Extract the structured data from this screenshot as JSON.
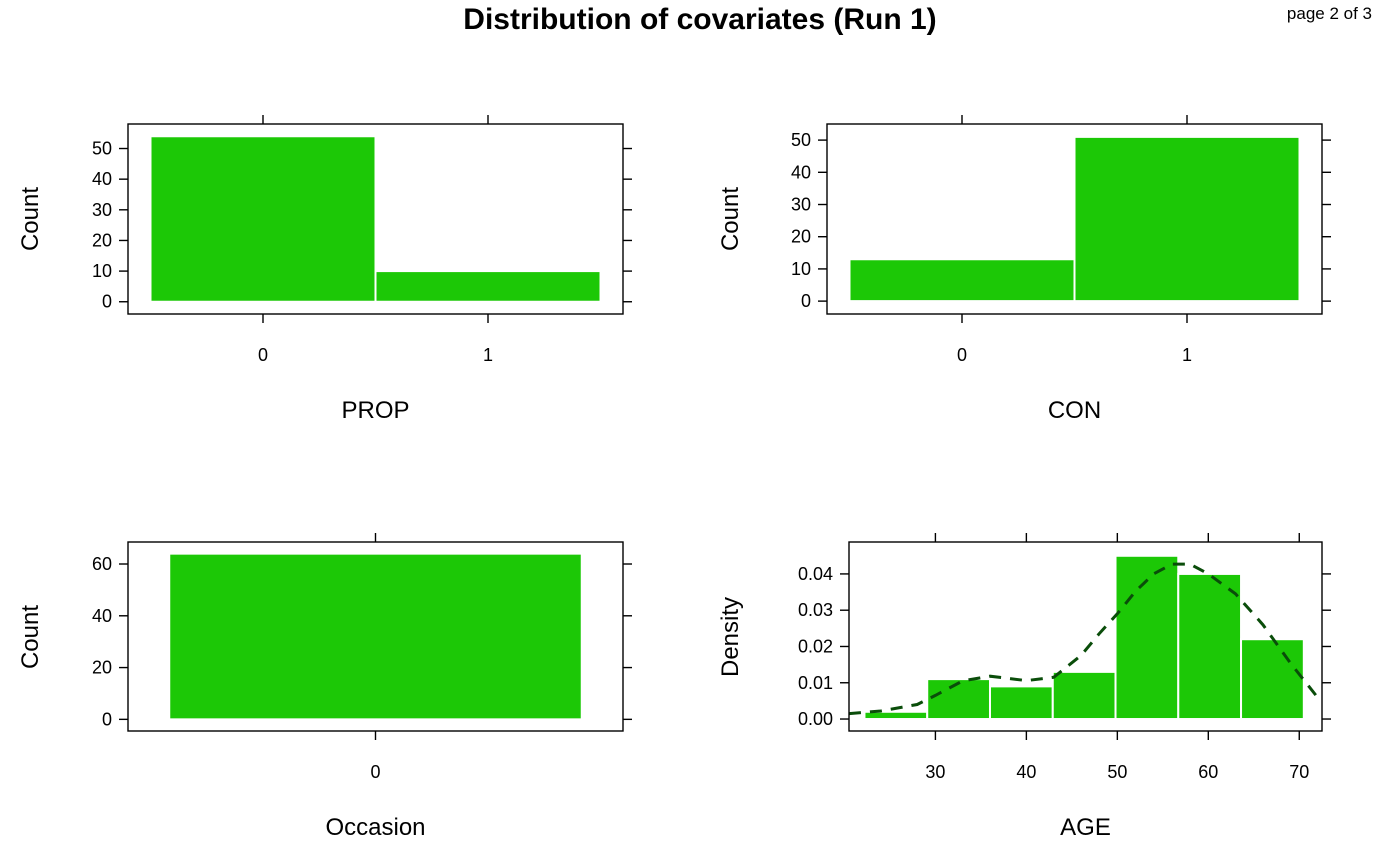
{
  "page": {
    "title": "Distribution of covariates (Run 1)",
    "counter": "page 2 of 3"
  },
  "colors": {
    "bar_fill": "#1cc806",
    "bar_edge": "#ffffff",
    "density_line": "#0a4d0a",
    "axis": "#000000"
  },
  "chart_data": [
    {
      "name": "PROP",
      "type": "bar",
      "categories": [
        "0",
        "1"
      ],
      "values": [
        54,
        10
      ],
      "xlabel": "PROP",
      "ylabel": "Count",
      "yticks": [
        0,
        10,
        20,
        30,
        40,
        50
      ],
      "ylim": [
        -4,
        58
      ],
      "grid": false
    },
    {
      "name": "CON",
      "type": "bar",
      "categories": [
        "0",
        "1"
      ],
      "values": [
        13,
        51
      ],
      "xlabel": "CON",
      "ylabel": "Count",
      "yticks": [
        0,
        10,
        20,
        30,
        40,
        50
      ],
      "ylim": [
        -4,
        55
      ],
      "grid": false
    },
    {
      "name": "Occasion",
      "type": "bar",
      "categories": [
        "0"
      ],
      "values": [
        64
      ],
      "xlabel": "Occasion",
      "ylabel": "Count",
      "yticks": [
        0,
        20,
        40,
        60
      ],
      "ylim": [
        -4.5,
        68.5
      ],
      "grid": false
    },
    {
      "name": "AGE",
      "type": "histogram",
      "xlabel": "AGE",
      "ylabel": "Density",
      "bins": [
        {
          "x0": 22.2,
          "x1": 29.1,
          "density": 0.002
        },
        {
          "x0": 29.1,
          "x1": 36.0,
          "density": 0.011
        },
        {
          "x0": 36.0,
          "x1": 42.9,
          "density": 0.009
        },
        {
          "x0": 42.9,
          "x1": 49.8,
          "density": 0.013
        },
        {
          "x0": 49.8,
          "x1": 56.7,
          "density": 0.045
        },
        {
          "x0": 56.7,
          "x1": 63.6,
          "density": 0.04
        },
        {
          "x0": 63.6,
          "x1": 70.5,
          "density": 0.022
        }
      ],
      "density_curve": {
        "x": [
          20.5,
          24,
          28,
          30,
          33,
          36,
          40,
          43,
          46,
          48,
          50,
          52,
          54,
          56,
          58,
          60,
          63,
          66,
          69,
          72
        ],
        "y": [
          0.0015,
          0.0022,
          0.004,
          0.0065,
          0.0105,
          0.0118,
          0.0106,
          0.0115,
          0.0175,
          0.0235,
          0.029,
          0.0352,
          0.04,
          0.0427,
          0.0427,
          0.04,
          0.0345,
          0.026,
          0.0155,
          0.006
        ]
      },
      "xticks": [
        30,
        40,
        50,
        60,
        70
      ],
      "yticks": [
        "0.00",
        "0.01",
        "0.02",
        "0.03",
        "0.04"
      ],
      "xlim": [
        20.5,
        72.5
      ],
      "ylim": [
        -0.0033,
        0.0488
      ],
      "grid": false
    }
  ]
}
